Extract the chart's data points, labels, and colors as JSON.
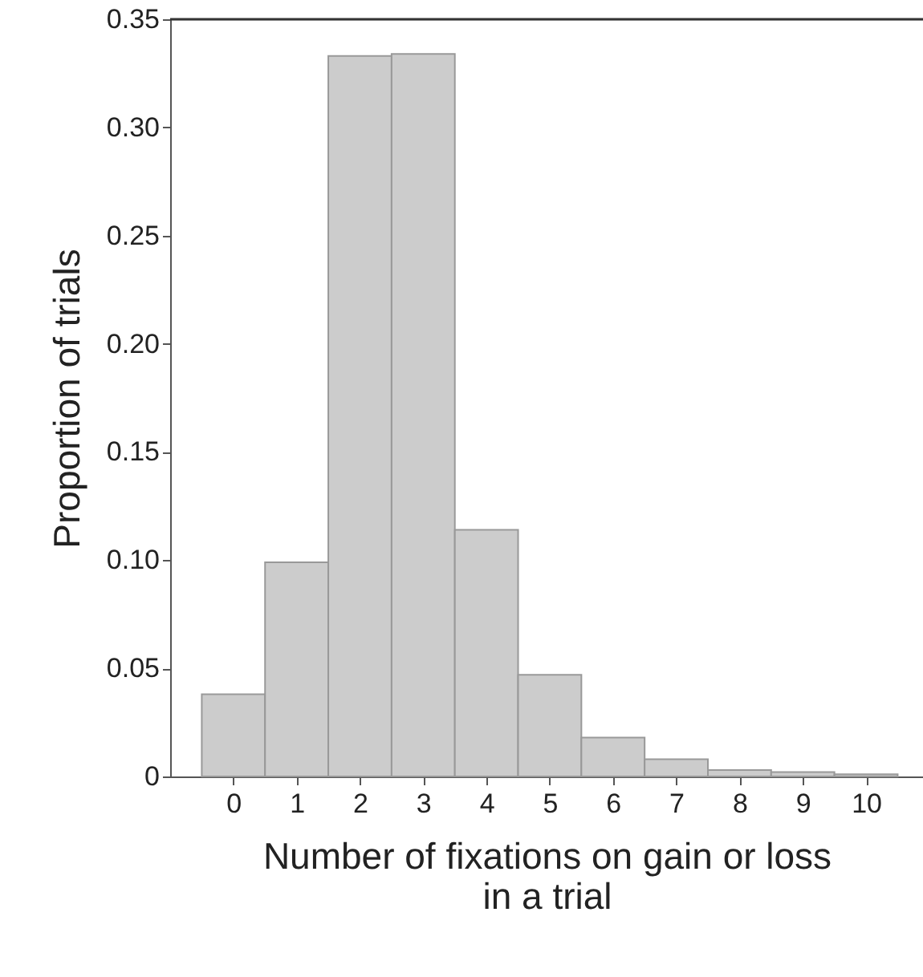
{
  "chart_data": {
    "type": "histogram",
    "xlabel": "Number of fixations on gain or loss in a trial",
    "ylabel": "Proportion of trials",
    "bins": [
      -0.5,
      0.5,
      1.5,
      2.5,
      3.5,
      4.5,
      5.5,
      6.5,
      7.5,
      8.5,
      9.5,
      10.5
    ],
    "values": [
      0.038,
      0.099,
      0.333,
      0.334,
      0.114,
      0.047,
      0.018,
      0.008,
      0.003,
      0.002,
      0.001
    ],
    "color": "#cccccc",
    "xlim": [
      -1,
      10.9
    ],
    "xticks": [
      0,
      1,
      2,
      3,
      4,
      5,
      6,
      7,
      8,
      9,
      10
    ],
    "ylim": [
      0,
      0.35
    ],
    "yticks": [
      0,
      {
        "value": 0.05,
        "label": "0.05"
      },
      {
        "value": 0.1,
        "label": "0.10"
      },
      {
        "value": 0.15,
        "label": "0.15"
      },
      {
        "value": 0.2,
        "label": "0.20"
      },
      {
        "value": 0.25,
        "label": "0.25"
      },
      {
        "value": 0.3,
        "label": "0.30"
      },
      {
        "value": 0.35,
        "label": "0.35"
      }
    ],
    "grid": false
  }
}
